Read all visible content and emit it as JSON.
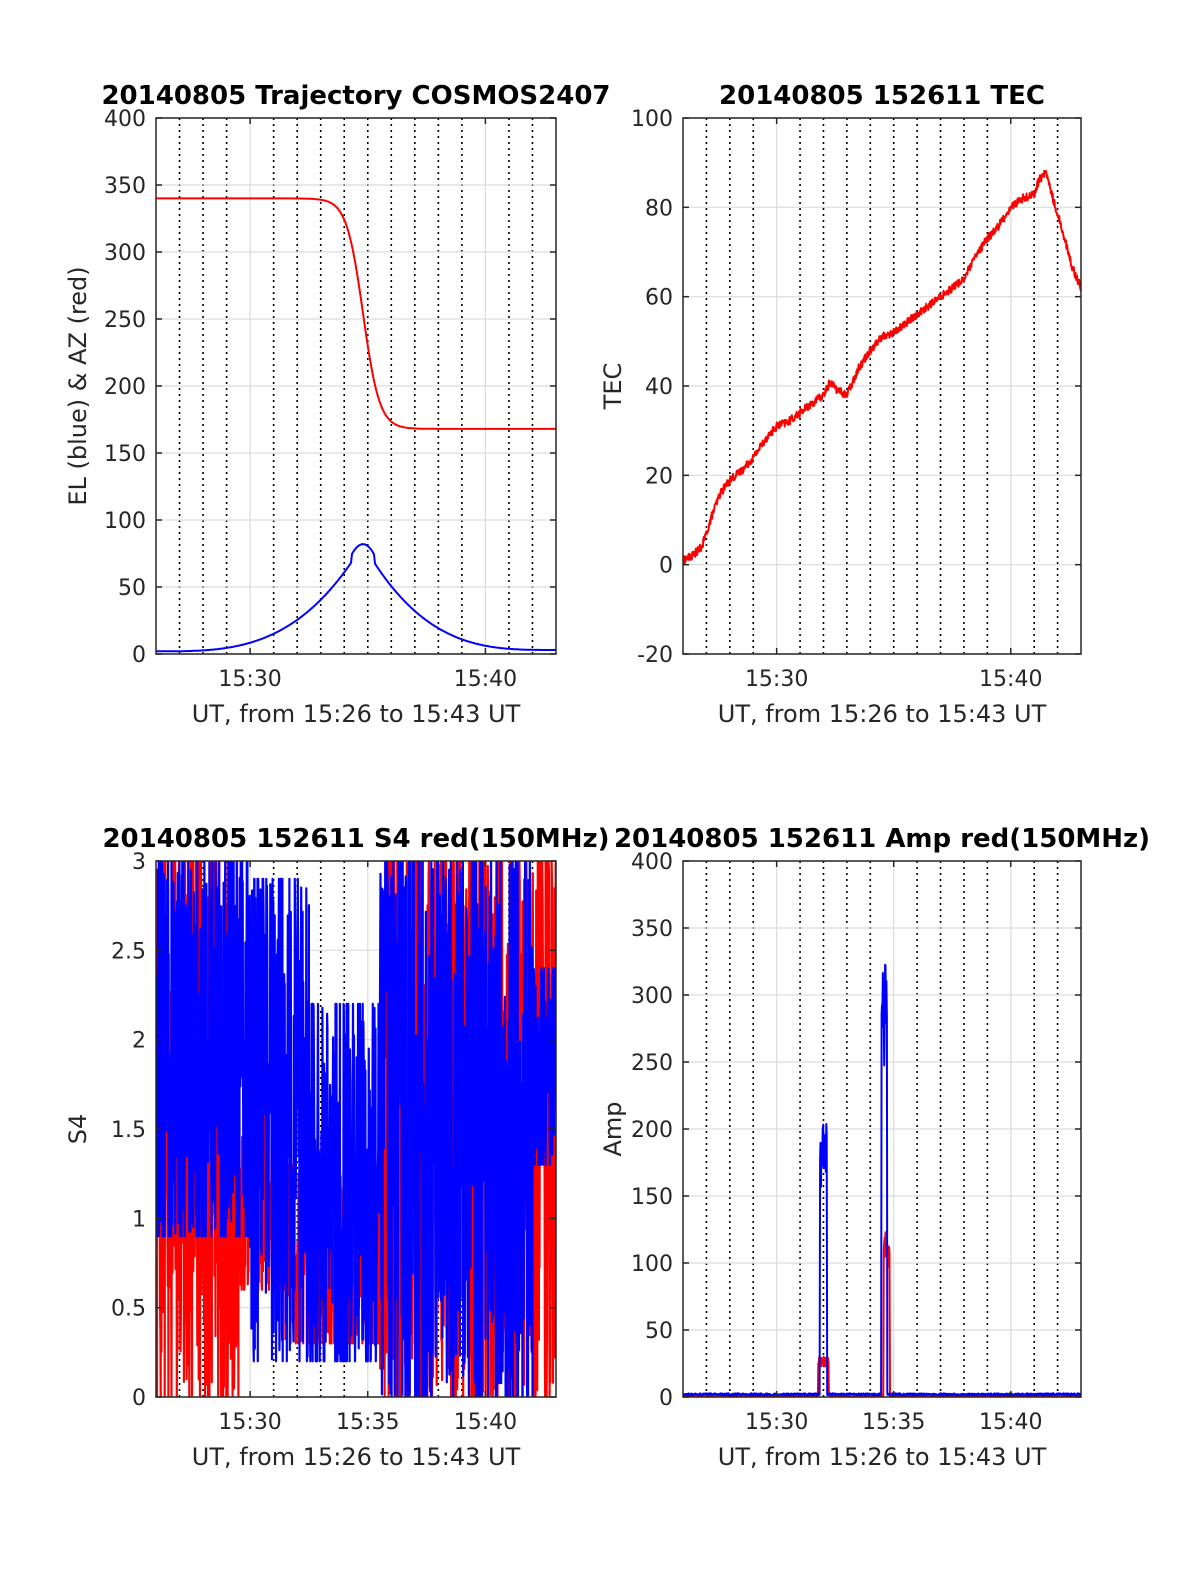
{
  "chart_data": [
    {
      "type": "line",
      "title": "20140805 Trajectory COSMOS2407",
      "xlabel": "UT, from 15:26 to 15:43 UT",
      "ylabel": "EL (blue) & AZ (red)",
      "xlim": [
        0,
        17
      ],
      "ylim": [
        0,
        400
      ],
      "xticks": [
        {
          "value": 4,
          "label": "15:30"
        },
        {
          "value": 14,
          "label": "15:40"
        }
      ],
      "yticks": [
        0,
        50,
        100,
        150,
        200,
        250,
        300,
        350,
        400
      ],
      "grid": true,
      "series": [
        {
          "color": "#ff0000",
          "shape": "sigmoid",
          "start": 340,
          "end": 168,
          "center": 8.8,
          "width": 0.35,
          "noise": 0
        },
        {
          "color": "#0000ff",
          "shape": "peak",
          "peak_x": 8.8,
          "peak": 82,
          "base_start": 2,
          "base_end": 3,
          "noise": 0
        }
      ]
    },
    {
      "type": "line",
      "title": "20140805 152611 TEC",
      "xlabel": "UT, from 15:26 to 15:43 UT",
      "ylabel": "TEC",
      "xlim": [
        0,
        17
      ],
      "ylim": [
        -20,
        100
      ],
      "xticks": [
        {
          "value": 4,
          "label": "15:30"
        },
        {
          "value": 14,
          "label": "15:40"
        }
      ],
      "yticks": [
        -20,
        0,
        20,
        40,
        60,
        80,
        100
      ],
      "grid": true,
      "series": [
        {
          "color": "#ff0000",
          "shape": "points",
          "noise": 0.9,
          "x": [
            0,
            0.4,
            0.8,
            1.0,
            1.3,
            1.6,
            2.0,
            2.5,
            3.0,
            3.5,
            4.0,
            4.5,
            5.0,
            5.5,
            6.0,
            6.3,
            6.6,
            7.0,
            7.5,
            8.0,
            8.5,
            9.0,
            9.5,
            10.0,
            11.0,
            12.0,
            12.5,
            13.0,
            13.5,
            14.0,
            14.5,
            15.0,
            15.2,
            15.5,
            15.8,
            16.2,
            16.6,
            17.0
          ],
          "y": [
            1,
            2,
            4,
            7,
            12,
            16,
            19,
            21,
            24,
            28,
            31,
            32,
            34,
            36,
            38,
            41,
            39,
            38,
            44,
            48,
            51,
            52,
            54,
            56,
            60,
            64,
            69,
            73,
            76,
            80,
            82,
            83,
            86,
            88,
            82,
            75,
            67,
            62
          ]
        }
      ]
    },
    {
      "type": "line",
      "title": "20140805 152611 S4 red(150MHz)",
      "xlabel": "UT, from 15:26 to 15:43 UT",
      "ylabel": "S4",
      "xlim": [
        0,
        17
      ],
      "ylim": [
        0,
        3
      ],
      "xticks": [
        {
          "value": 4,
          "label": "15:30"
        },
        {
          "value": 9,
          "label": "15:35"
        },
        {
          "value": 14,
          "label": "15:40"
        }
      ],
      "yticks": [
        {
          "value": 0,
          "label": "0"
        },
        {
          "value": 0.5,
          "label": "0.5"
        },
        {
          "value": 1,
          "label": "1"
        },
        {
          "value": 1.5,
          "label": "1.5"
        },
        {
          "value": 2,
          "label": "2"
        },
        {
          "value": 2.5,
          "label": "2.5"
        },
        {
          "value": 3,
          "label": "3"
        }
      ],
      "grid": true,
      "series": [
        {
          "color": "#ff0000",
          "shape": "spiky",
          "seed": 7,
          "segments": [
            [
              0,
              3.5,
              0,
              3
            ],
            [
              3.5,
              5.5,
              0.6,
              1.6
            ],
            [
              5.5,
              9.5,
              0.3,
              1.3
            ],
            [
              9.5,
              17,
              0,
              3
            ]
          ]
        },
        {
          "color": "#0000ff",
          "shape": "spiky",
          "seed": 13,
          "segments": [
            [
              0,
              4.0,
              0.9,
              3
            ],
            [
              4.0,
              6.5,
              0.2,
              2.9
            ],
            [
              6.5,
              9.5,
              0.2,
              2.2
            ],
            [
              9.5,
              16,
              0,
              3
            ],
            [
              16,
              17,
              1.3,
              2.4
            ]
          ]
        }
      ]
    },
    {
      "type": "line",
      "title": "20140805 152611 Amp red(150MHz)",
      "xlabel": "UT, from 15:26 to 15:43 UT",
      "ylabel": "Amp",
      "xlim": [
        0,
        17
      ],
      "ylim": [
        0,
        400
      ],
      "xticks": [
        {
          "value": 4,
          "label": "15:30"
        },
        {
          "value": 9,
          "label": "15:35"
        },
        {
          "value": 14,
          "label": "15:40"
        }
      ],
      "yticks": [
        0,
        50,
        100,
        150,
        200,
        250,
        300,
        350,
        400
      ],
      "grid": true,
      "series": [
        {
          "color": "#ff0000",
          "shape": "pulses",
          "base": 1,
          "pulses": [
            {
              "x": 6.0,
              "width": 0.45,
              "peak": 30
            },
            {
              "x": 8.7,
              "width": 0.25,
              "peak": 125
            }
          ]
        },
        {
          "color": "#0000ff",
          "shape": "pulses",
          "base": 2,
          "pulses": [
            {
              "x": 6.0,
              "width": 0.3,
              "peak": 208
            },
            {
              "x": 8.6,
              "width": 0.25,
              "peak": 328
            }
          ]
        }
      ]
    }
  ]
}
